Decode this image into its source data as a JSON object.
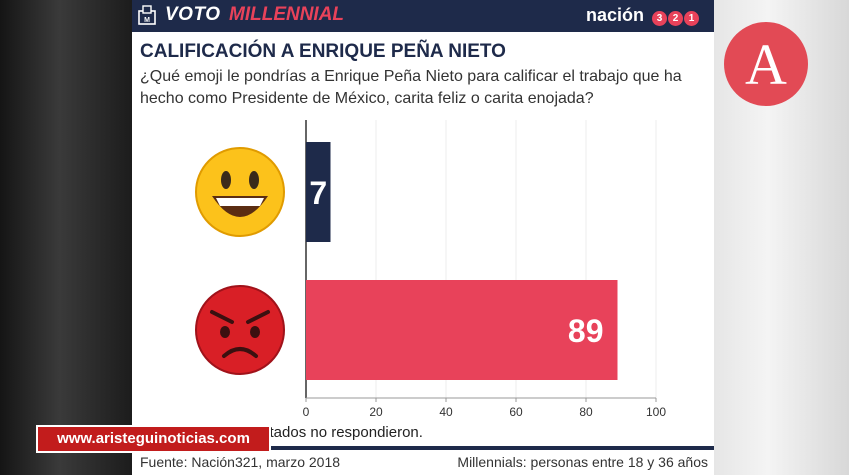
{
  "header": {
    "brand_left_a": "VOTO",
    "brand_left_b": "MILLENNIAL",
    "brand_right": "nación",
    "brand_digits": [
      "3",
      "2",
      "1"
    ]
  },
  "title": "CALIFICACIÓN A ENRIQUE PEÑA NIETO",
  "question": "¿Qué emoji le pondrías a Enrique Peña Nieto para calificar el trabajo que ha hecho como Presidente de México, carita feliz o carita enojada?",
  "footnote": "stados no respondieron.",
  "source": "Fuente: Nación321, marzo 2018",
  "note": "Millennials: personas entre 18 y 36 años",
  "overlay_url": "www.aristeguinoticias.com",
  "chart_data": {
    "type": "bar",
    "orientation": "horizontal",
    "categories": [
      "happy-emoji",
      "angry-emoji"
    ],
    "values": [
      7,
      89
    ],
    "bar_colors": [
      "#1e2a4a",
      "#e8425a"
    ],
    "label_colors": [
      "#ffffff",
      "#ffffff"
    ],
    "xlim": [
      0,
      100
    ],
    "xticks": [
      0,
      20,
      40,
      60,
      80,
      100
    ]
  },
  "colors": {
    "navy": "#1e2a4a",
    "accent": "#e8425a",
    "overlay_red": "#c21c1c"
  }
}
